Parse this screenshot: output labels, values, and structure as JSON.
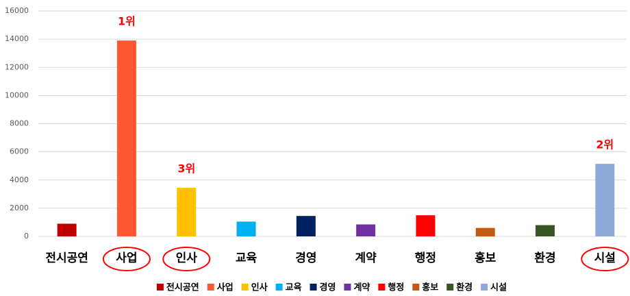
{
  "chart_data": {
    "type": "bar",
    "categories": [
      "전시공연",
      "사업",
      "인사",
      "교육",
      "경영",
      "계약",
      "행정",
      "홍보",
      "환경",
      "시설"
    ],
    "values": [
      900,
      13900,
      3450,
      1050,
      1450,
      850,
      1500,
      600,
      800,
      5150
    ],
    "colors": [
      "#c00000",
      "#ff5733",
      "#ffc000",
      "#00b0f0",
      "#002060",
      "#7030a0",
      "#ff0000",
      "#c55a11",
      "#375623",
      "#8eaadb"
    ],
    "ylim": [
      0,
      16000
    ],
    "yticks": [
      0,
      2000,
      4000,
      6000,
      8000,
      10000,
      12000,
      14000,
      16000
    ],
    "grid": true,
    "legend": "bottom",
    "annotations": [
      {
        "text": "1위",
        "category": "사업"
      },
      {
        "text": "3위",
        "category": "인사"
      },
      {
        "text": "2위",
        "category": "시설"
      }
    ]
  }
}
